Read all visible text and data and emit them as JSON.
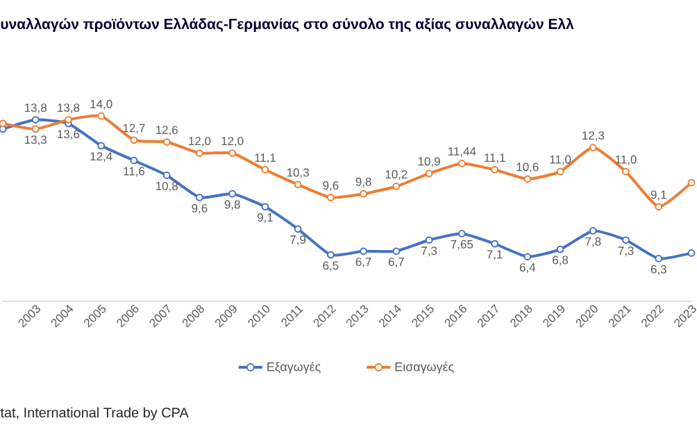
{
  "chart_data": {
    "type": "line",
    "title": "υναλλαγών προϊόντων Ελλάδας-Γερμανίας στο σύνολο της αξίας συναλλαγών Ελλ",
    "categories": [
      null,
      "2003",
      "2004",
      "2005",
      "2006",
      "2007",
      "2008",
      "2009",
      "2010",
      "2011",
      "2012",
      "2013",
      "2014",
      "2015",
      "2016",
      "2017",
      "2018",
      "2019",
      "2020",
      "2021",
      "2022",
      "2023"
    ],
    "series": [
      {
        "name": "Εξαγωγές",
        "color": "#4472c4",
        "values": [
          13.3,
          13.8,
          13.6,
          12.4,
          11.6,
          10.8,
          9.6,
          9.8,
          9.1,
          7.9,
          6.5,
          6.7,
          6.7,
          7.3,
          7.65,
          7.1,
          6.4,
          6.8,
          7.8,
          7.3,
          6.3,
          6.6
        ],
        "value_labels": [
          null,
          "13,8",
          "13,6",
          "12,4",
          "11,6",
          "10,8",
          "9,6",
          "9,8",
          "9,1",
          "7,9",
          "6,5",
          "6,7",
          "6,7",
          "7,3",
          "7,65",
          "7,1",
          "6,4",
          "6,8",
          "7,8",
          "7,3",
          "6,3",
          null
        ]
      },
      {
        "name": "Εισαγωγές",
        "color": "#ed7d31",
        "values": [
          13.6,
          13.3,
          13.8,
          14.0,
          12.7,
          12.6,
          12.0,
          12.0,
          11.1,
          10.3,
          9.6,
          9.8,
          10.2,
          10.9,
          11.44,
          11.1,
          10.6,
          11.0,
          12.3,
          11.0,
          9.1,
          10.4
        ],
        "value_labels": [
          null,
          "13,3",
          "13,8",
          "14,0",
          "12,7",
          "12,6",
          "12,0",
          "12,0",
          "11,1",
          "10,3",
          "9,6",
          "9,8",
          "10,2",
          "10,9",
          "11,44",
          "11,1",
          "10,6",
          "11,0",
          "12,3",
          "11,0",
          "9,1",
          null
        ]
      }
    ],
    "marker": "circle",
    "legend": "bottom",
    "annotations": [
      "tat, International Trade by CPA"
    ]
  }
}
